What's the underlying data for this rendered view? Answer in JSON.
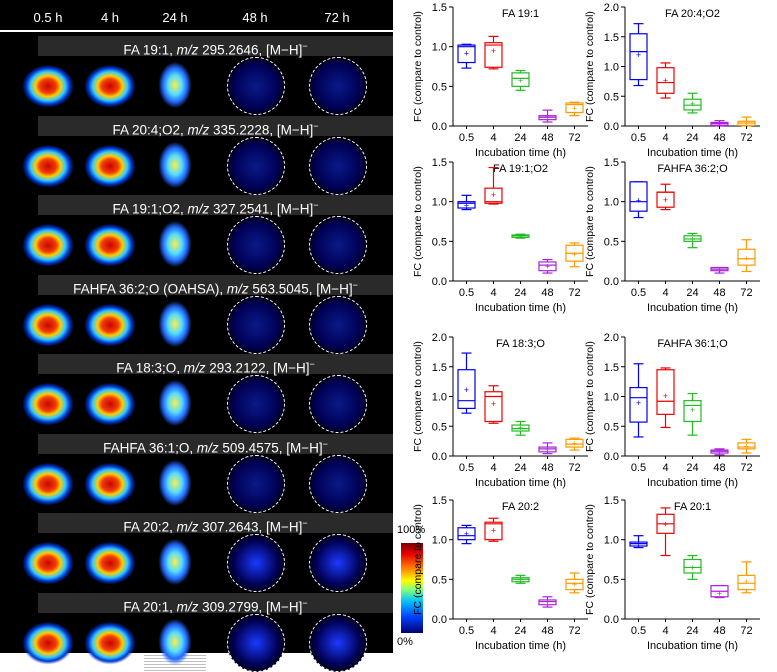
{
  "figure": {
    "time_points": [
      "0.5 h",
      "4 h",
      "24 h",
      "48 h",
      "72 h"
    ],
    "rows": [
      {
        "prefix": "FA 19:1, ",
        "mz": "m/z",
        "value": " 295.2646, [M−H]",
        "sup": "−"
      },
      {
        "prefix": "FA 20:4;O2, ",
        "mz": "m/z",
        "value": " 335.2228, [M−H]",
        "sup": "−"
      },
      {
        "prefix": "FA 19:1;O2, ",
        "mz": "m/z",
        "value": " 327.2541, [M−H]",
        "sup": "−"
      },
      {
        "prefix": "FAHFA 36:2;O (OAHSA), ",
        "mz": "m/z",
        "value": " 563.5045, [M−H]",
        "sup": "−"
      },
      {
        "prefix": "FA 18:3;O, ",
        "mz": "m/z",
        "value": " 293.2122, [M−H]",
        "sup": "−"
      },
      {
        "prefix": "FAHFA 36:1;O, ",
        "mz": "m/z",
        "value": " 509.4575, [M−H]",
        "sup": "−"
      },
      {
        "prefix": "FA 20:2, ",
        "mz": "m/z",
        "value": " 307.2643, [M−H]",
        "sup": "−"
      },
      {
        "prefix": "FA 20:1, ",
        "mz": "m/z",
        "value": " 309.2799, [M−H]",
        "sup": "−"
      }
    ],
    "colorbar": {
      "max_label": "100%",
      "min_label": "0%"
    }
  },
  "chart_data": [
    {
      "type": "box",
      "title": "FA 19:1",
      "ylabel": "FC (compare to control)",
      "xlabel": "Incubation time (h)",
      "ylim": [
        0,
        1.5
      ],
      "yticks": [
        0.0,
        0.5,
        1.0,
        1.5
      ],
      "categories": [
        "0.5",
        "4",
        "24",
        "48",
        "72"
      ],
      "boxes": [
        {
          "min": 0.73,
          "q1": 0.8,
          "median": 1.0,
          "q3": 1.02,
          "max": 1.03,
          "mean": 0.92
        },
        {
          "min": 0.72,
          "q1": 0.74,
          "median": 1.02,
          "q3": 1.05,
          "max": 1.13,
          "mean": 0.95
        },
        {
          "min": 0.45,
          "q1": 0.5,
          "median": 0.6,
          "q3": 0.67,
          "max": 0.7,
          "mean": 0.58
        },
        {
          "min": 0.05,
          "q1": 0.08,
          "median": 0.11,
          "q3": 0.13,
          "max": 0.2,
          "mean": 0.12
        },
        {
          "min": 0.13,
          "q1": 0.17,
          "median": 0.27,
          "q3": 0.29,
          "max": 0.3,
          "mean": 0.23
        }
      ]
    },
    {
      "type": "box",
      "title": "FA 20:4;O2",
      "ylabel": "FC (compare to control)",
      "xlabel": "Incubation time (h)",
      "ylim": [
        0,
        2.0
      ],
      "yticks": [
        0.0,
        0.5,
        1.0,
        1.5,
        2.0
      ],
      "categories": [
        "0.5",
        "4",
        "24",
        "48",
        "72"
      ],
      "boxes": [
        {
          "min": 0.68,
          "q1": 0.78,
          "median": 1.25,
          "q3": 1.55,
          "max": 1.72,
          "mean": 1.2
        },
        {
          "min": 0.47,
          "q1": 0.55,
          "median": 0.73,
          "q3": 0.98,
          "max": 1.06,
          "mean": 0.77
        },
        {
          "min": 0.22,
          "q1": 0.27,
          "median": 0.35,
          "q3": 0.45,
          "max": 0.55,
          "mean": 0.38
        },
        {
          "min": 0.0,
          "q1": 0.01,
          "median": 0.04,
          "q3": 0.06,
          "max": 0.09,
          "mean": 0.04
        },
        {
          "min": 0.0,
          "q1": 0.01,
          "median": 0.05,
          "q3": 0.08,
          "max": 0.15,
          "mean": 0.06
        }
      ]
    },
    {
      "type": "box",
      "title": "FA 19:1;O2",
      "ylabel": "FC (compare to control)",
      "xlabel": "Incubation time (h)",
      "ylim": [
        0,
        1.5
      ],
      "yticks": [
        0.0,
        0.5,
        1.0,
        1.5
      ],
      "categories": [
        "0.5",
        "4",
        "24",
        "48",
        "72"
      ],
      "boxes": [
        {
          "min": 0.9,
          "q1": 0.92,
          "median": 0.98,
          "q3": 1.0,
          "max": 1.08,
          "mean": 0.96
        },
        {
          "min": 0.97,
          "q1": 0.98,
          "median": 1.0,
          "q3": 1.17,
          "max": 1.43,
          "mean": 1.09
        },
        {
          "min": 0.54,
          "q1": 0.55,
          "median": 0.57,
          "q3": 0.58,
          "max": 0.59,
          "mean": 0.57
        },
        {
          "min": 0.1,
          "q1": 0.13,
          "median": 0.2,
          "q3": 0.24,
          "max": 0.27,
          "mean": 0.19
        },
        {
          "min": 0.18,
          "q1": 0.25,
          "median": 0.35,
          "q3": 0.45,
          "max": 0.48,
          "mean": 0.34
        }
      ]
    },
    {
      "type": "box",
      "title": "FAHFA 36:2;O",
      "ylabel": "FC (compare to control)",
      "xlabel": "Incubation time (h)",
      "ylim": [
        0,
        1.5
      ],
      "yticks": [
        0.0,
        0.5,
        1.0,
        1.5
      ],
      "categories": [
        "0.5",
        "4",
        "24",
        "48",
        "72"
      ],
      "boxes": [
        {
          "min": 0.8,
          "q1": 0.88,
          "median": 1.0,
          "q3": 1.25,
          "max": 1.25,
          "mean": 1.02
        },
        {
          "min": 0.9,
          "q1": 0.93,
          "median": 1.12,
          "q3": 1.12,
          "max": 1.22,
          "mean": 1.03
        },
        {
          "min": 0.42,
          "q1": 0.5,
          "median": 0.53,
          "q3": 0.57,
          "max": 0.6,
          "mean": 0.53
        },
        {
          "min": 0.1,
          "q1": 0.13,
          "median": 0.15,
          "q3": 0.17,
          "max": 0.17,
          "mean": 0.15
        },
        {
          "min": 0.12,
          "q1": 0.2,
          "median": 0.28,
          "q3": 0.4,
          "max": 0.52,
          "mean": 0.29
        }
      ]
    },
    {
      "type": "box",
      "title": "FA 18:3;O",
      "ylabel": "FC (compare to control)",
      "xlabel": "Incubation time (h)",
      "ylim": [
        0,
        2.0
      ],
      "yticks": [
        0.0,
        0.5,
        1.0,
        1.5,
        2.0
      ],
      "categories": [
        "0.5",
        "4",
        "24",
        "48",
        "72"
      ],
      "boxes": [
        {
          "min": 0.72,
          "q1": 0.8,
          "median": 0.93,
          "q3": 1.45,
          "max": 1.73,
          "mean": 1.12
        },
        {
          "min": 0.55,
          "q1": 0.58,
          "median": 1.0,
          "q3": 1.08,
          "max": 1.18,
          "mean": 0.88
        },
        {
          "min": 0.35,
          "q1": 0.42,
          "median": 0.46,
          "q3": 0.52,
          "max": 0.58,
          "mean": 0.48
        },
        {
          "min": 0.04,
          "q1": 0.07,
          "median": 0.12,
          "q3": 0.15,
          "max": 0.22,
          "mean": 0.12
        },
        {
          "min": 0.1,
          "q1": 0.15,
          "median": 0.2,
          "q3": 0.28,
          "max": 0.3,
          "mean": 0.22
        }
      ]
    },
    {
      "type": "box",
      "title": "FAHFA 36:1;O",
      "ylabel": "FC (compare to control)",
      "xlabel": "Incubation time (h)",
      "ylim": [
        0,
        2.0
      ],
      "yticks": [
        0.0,
        0.5,
        1.0,
        1.5,
        2.0
      ],
      "categories": [
        "0.5",
        "4",
        "24",
        "48",
        "72"
      ],
      "boxes": [
        {
          "min": 0.32,
          "q1": 0.57,
          "median": 0.98,
          "q3": 1.15,
          "max": 1.55,
          "mean": 0.9
        },
        {
          "min": 0.48,
          "q1": 0.7,
          "median": 0.92,
          "q3": 1.45,
          "max": 1.48,
          "mean": 1.02
        },
        {
          "min": 0.35,
          "q1": 0.58,
          "median": 0.85,
          "q3": 0.93,
          "max": 1.05,
          "mean": 0.78
        },
        {
          "min": 0.02,
          "q1": 0.05,
          "median": 0.08,
          "q3": 0.1,
          "max": 0.12,
          "mean": 0.08
        },
        {
          "min": 0.05,
          "q1": 0.12,
          "median": 0.15,
          "q3": 0.22,
          "max": 0.28,
          "mean": 0.17
        }
      ]
    },
    {
      "type": "box",
      "title": "FA 20:2",
      "ylabel": "FC (compare to control)",
      "xlabel": "Incubation time (h)",
      "ylim": [
        0,
        1.5
      ],
      "yticks": [
        0.0,
        0.5,
        1.0,
        1.5
      ],
      "categories": [
        "0.5",
        "4",
        "24",
        "48",
        "72"
      ],
      "boxes": [
        {
          "min": 0.95,
          "q1": 1.0,
          "median": 1.05,
          "q3": 1.15,
          "max": 1.18,
          "mean": 1.08
        },
        {
          "min": 0.98,
          "q1": 1.0,
          "median": 1.2,
          "q3": 1.22,
          "max": 1.27,
          "mean": 1.12
        },
        {
          "min": 0.45,
          "q1": 0.47,
          "median": 0.5,
          "q3": 0.52,
          "max": 0.55,
          "mean": 0.5
        },
        {
          "min": 0.15,
          "q1": 0.18,
          "median": 0.22,
          "q3": 0.24,
          "max": 0.28,
          "mean": 0.22
        },
        {
          "min": 0.33,
          "q1": 0.37,
          "median": 0.45,
          "q3": 0.5,
          "max": 0.58,
          "mean": 0.44
        }
      ]
    },
    {
      "type": "box",
      "title": "FA 20:1",
      "ylabel": "FC (compare to control)",
      "xlabel": "Incubation time (h)",
      "ylim": [
        0,
        1.5
      ],
      "yticks": [
        0.0,
        0.5,
        1.0,
        1.5
      ],
      "categories": [
        "0.5",
        "4",
        "24",
        "48",
        "72"
      ],
      "boxes": [
        {
          "min": 0.9,
          "q1": 0.92,
          "median": 0.95,
          "q3": 0.97,
          "max": 1.05,
          "mean": 0.95
        },
        {
          "min": 0.8,
          "q1": 1.08,
          "median": 1.2,
          "q3": 1.32,
          "max": 1.4,
          "mean": 1.2
        },
        {
          "min": 0.5,
          "q1": 0.58,
          "median": 0.65,
          "q3": 0.75,
          "max": 0.8,
          "mean": 0.65
        },
        {
          "min": 0.27,
          "q1": 0.28,
          "median": 0.35,
          "q3": 0.42,
          "max": 0.42,
          "mean": 0.33
        },
        {
          "min": 0.33,
          "q1": 0.37,
          "median": 0.45,
          "q3": 0.55,
          "max": 0.72,
          "mean": 0.47
        }
      ]
    }
  ],
  "series_colors": [
    "#0000ee",
    "#ee0000",
    "#22bb22",
    "#aa22dd",
    "#ff9900"
  ]
}
